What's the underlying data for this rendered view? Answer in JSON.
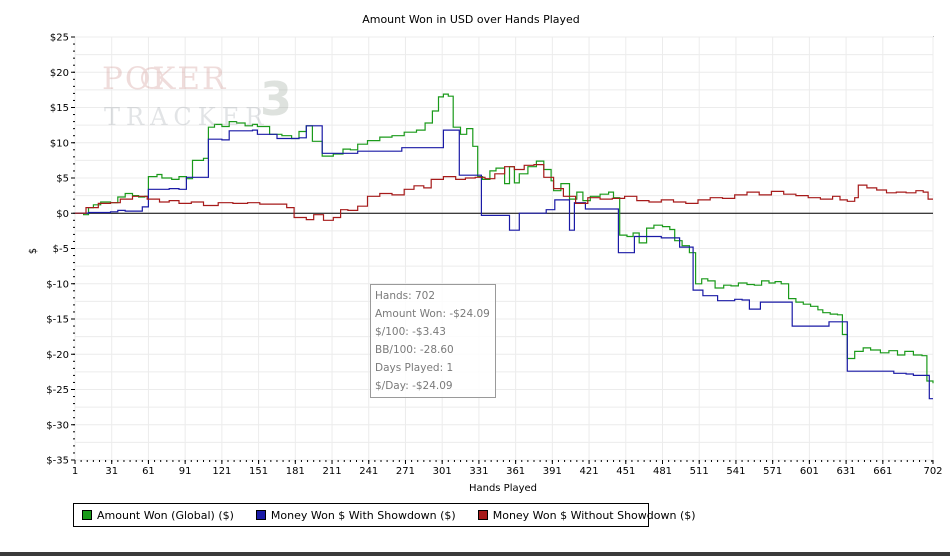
{
  "chart_data": {
    "type": "line",
    "title": "Amount Won in USD over Hands Played",
    "xlabel": "Hands Played",
    "ylabel": "$",
    "xlim": [
      1,
      702
    ],
    "ylim": [
      -35,
      25
    ],
    "x_ticks": [
      1,
      31,
      61,
      91,
      121,
      151,
      181,
      211,
      241,
      271,
      301,
      331,
      361,
      391,
      421,
      451,
      481,
      511,
      541,
      571,
      601,
      631,
      661,
      702
    ],
    "y_ticks": [
      {
        "v": 25,
        "label": "$25"
      },
      {
        "v": 20,
        "label": "$20"
      },
      {
        "v": 15,
        "label": "$15"
      },
      {
        "v": 10,
        "label": "$10"
      },
      {
        "v": 5,
        "label": "$5"
      },
      {
        "v": 0,
        "label": "$0"
      },
      {
        "v": -5,
        "label": "$-5"
      },
      {
        "v": -10,
        "label": "$-10"
      },
      {
        "v": -15,
        "label": "$-15"
      },
      {
        "v": -20,
        "label": "$-20"
      },
      {
        "v": -25,
        "label": "$-25"
      },
      {
        "v": -30,
        "label": "$-30"
      },
      {
        "v": -35,
        "label": "$-35"
      }
    ],
    "grid": true,
    "legend_position": "bottom",
    "series": [
      {
        "name": "Amount Won (Global) ($)",
        "color": "#1a9a1a",
        "points": [
          [
            1,
            0
          ],
          [
            8,
            -0.2
          ],
          [
            12,
            0.8
          ],
          [
            16,
            1.2
          ],
          [
            22,
            1.6
          ],
          [
            30,
            1.5
          ],
          [
            36,
            2.3
          ],
          [
            42,
            2.8
          ],
          [
            48,
            2.5
          ],
          [
            53,
            2.3
          ],
          [
            58,
            2.4
          ],
          [
            61,
            5.2
          ],
          [
            68,
            5.5
          ],
          [
            72,
            5.0
          ],
          [
            80,
            4.8
          ],
          [
            86,
            5.2
          ],
          [
            92,
            4.9
          ],
          [
            97,
            7.5
          ],
          [
            106,
            7.8
          ],
          [
            110,
            12.2
          ],
          [
            115,
            12.6
          ],
          [
            121,
            12.3
          ],
          [
            127,
            13.0
          ],
          [
            133,
            12.8
          ],
          [
            140,
            12.4
          ],
          [
            146,
            12.6
          ],
          [
            150,
            12.3
          ],
          [
            160,
            11.2
          ],
          [
            170,
            11.0
          ],
          [
            178,
            10.6
          ],
          [
            184,
            11.6
          ],
          [
            190,
            12.4
          ],
          [
            195,
            10.2
          ],
          [
            203,
            8.1
          ],
          [
            212,
            8.4
          ],
          [
            220,
            9.1
          ],
          [
            226,
            9.0
          ],
          [
            232,
            9.8
          ],
          [
            240,
            10.3
          ],
          [
            250,
            10.8
          ],
          [
            260,
            11.0
          ],
          [
            270,
            11.5
          ],
          [
            280,
            11.8
          ],
          [
            287,
            12.8
          ],
          [
            293,
            14.5
          ],
          [
            298,
            16.5
          ],
          [
            302,
            16.9
          ],
          [
            306,
            16.6
          ],
          [
            310,
            12.2
          ],
          [
            316,
            11.2
          ],
          [
            321,
            12.0
          ],
          [
            326,
            9.5
          ],
          [
            330,
            5.2
          ],
          [
            334,
            4.8
          ],
          [
            340,
            6.0
          ],
          [
            345,
            6.4
          ],
          [
            352,
            4.2
          ],
          [
            356,
            6.6
          ],
          [
            360,
            4.3
          ],
          [
            364,
            5.6
          ],
          [
            371,
            6.6
          ],
          [
            378,
            7.4
          ],
          [
            384,
            6.2
          ],
          [
            390,
            4.6
          ],
          [
            392,
            3.2
          ],
          [
            398,
            4.2
          ],
          [
            405,
            2.0
          ],
          [
            411,
            3.0
          ],
          [
            416,
            1.8
          ],
          [
            422,
            2.4
          ],
          [
            430,
            2.7
          ],
          [
            437,
            3.0
          ],
          [
            441,
            2.2
          ],
          [
            446,
            -3.1
          ],
          [
            452,
            -3.3
          ],
          [
            457,
            -2.8
          ],
          [
            462,
            -4.2
          ],
          [
            468,
            -2.1
          ],
          [
            474,
            -1.7
          ],
          [
            481,
            -1.9
          ],
          [
            487,
            -2.3
          ],
          [
            491,
            -3.9
          ],
          [
            497,
            -4.6
          ],
          [
            503,
            -5.6
          ],
          [
            508,
            -10.0
          ],
          [
            513,
            -9.3
          ],
          [
            518,
            -9.6
          ],
          [
            524,
            -10.6
          ],
          [
            531,
            -10.2
          ],
          [
            537,
            -10.3
          ],
          [
            543,
            -9.9
          ],
          [
            550,
            -10.1
          ],
          [
            556,
            -10.2
          ],
          [
            562,
            -9.6
          ],
          [
            568,
            -9.9
          ],
          [
            573,
            -9.7
          ],
          [
            578,
            -10.0
          ],
          [
            584,
            -12.1
          ],
          [
            590,
            -12.6
          ],
          [
            596,
            -12.9
          ],
          [
            602,
            -13.2
          ],
          [
            608,
            -13.7
          ],
          [
            612,
            -14.1
          ],
          [
            618,
            -14.3
          ],
          [
            624,
            -14.4
          ],
          [
            628,
            -17.2
          ],
          [
            632,
            -20.6
          ],
          [
            638,
            -19.6
          ],
          [
            645,
            -19.1
          ],
          [
            651,
            -19.4
          ],
          [
            659,
            -19.8
          ],
          [
            666,
            -19.5
          ],
          [
            673,
            -20.1
          ],
          [
            679,
            -19.6
          ],
          [
            686,
            -20.1
          ],
          [
            693,
            -20.2
          ],
          [
            697,
            -23.8
          ],
          [
            702,
            -24.1
          ]
        ]
      },
      {
        "name": "Money Won $ With Showdown ($)",
        "color": "#1a1aa6",
        "points": [
          [
            1,
            0
          ],
          [
            12,
            0.1
          ],
          [
            22,
            0.1
          ],
          [
            30,
            0.2
          ],
          [
            36,
            0.4
          ],
          [
            42,
            0.3
          ],
          [
            50,
            0.3
          ],
          [
            56,
            0.9
          ],
          [
            61,
            3.4
          ],
          [
            74,
            3.4
          ],
          [
            78,
            3.5
          ],
          [
            86,
            3.4
          ],
          [
            92,
            5.1
          ],
          [
            106,
            5.1
          ],
          [
            110,
            10.5
          ],
          [
            121,
            10.4
          ],
          [
            127,
            11.7
          ],
          [
            146,
            11.8
          ],
          [
            150,
            11.2
          ],
          [
            160,
            11.2
          ],
          [
            166,
            10.6
          ],
          [
            184,
            10.7
          ],
          [
            190,
            12.4
          ],
          [
            200,
            12.4
          ],
          [
            203,
            8.5
          ],
          [
            226,
            8.5
          ],
          [
            232,
            8.8
          ],
          [
            262,
            8.8
          ],
          [
            268,
            9.3
          ],
          [
            296,
            9.3
          ],
          [
            302,
            11.8
          ],
          [
            312,
            11.8
          ],
          [
            315,
            5.4
          ],
          [
            328,
            5.4
          ],
          [
            333,
            -0.3
          ],
          [
            352,
            -0.3
          ],
          [
            356,
            -2.4
          ],
          [
            362,
            -2.4
          ],
          [
            364,
            0
          ],
          [
            380,
            0
          ],
          [
            386,
            0.5
          ],
          [
            390,
            0.5
          ],
          [
            393,
            1.9
          ],
          [
            401,
            1.9
          ],
          [
            405,
            -2.4
          ],
          [
            409,
            1.5
          ],
          [
            414,
            1.5
          ],
          [
            418,
            0.6
          ],
          [
            440,
            0.6
          ],
          [
            445,
            -5.6
          ],
          [
            456,
            -5.6
          ],
          [
            458,
            -3.3
          ],
          [
            476,
            -3.3
          ],
          [
            480,
            -3.5
          ],
          [
            490,
            -3.5
          ],
          [
            495,
            -4.8
          ],
          [
            503,
            -4.8
          ],
          [
            506,
            -10.9
          ],
          [
            512,
            -10.9
          ],
          [
            514,
            -11.7
          ],
          [
            520,
            -11.7
          ],
          [
            526,
            -12.4
          ],
          [
            534,
            -12.4
          ],
          [
            540,
            -12.2
          ],
          [
            546,
            -12.3
          ],
          [
            552,
            -13.6
          ],
          [
            558,
            -13.6
          ],
          [
            561,
            -12.6
          ],
          [
            582,
            -12.6
          ],
          [
            587,
            -16.0
          ],
          [
            614,
            -16.0
          ],
          [
            617,
            -15.4
          ],
          [
            628,
            -15.4
          ],
          [
            632,
            -22.4
          ],
          [
            666,
            -22.4
          ],
          [
            670,
            -22.7
          ],
          [
            680,
            -22.8
          ],
          [
            686,
            -23.0
          ],
          [
            697,
            -23.0
          ],
          [
            699,
            -26.3
          ],
          [
            702,
            -26.3
          ]
        ]
      },
      {
        "name": "Money Won $ Without Showdown ($)",
        "color": "#a61a1a",
        "points": [
          [
            1,
            0
          ],
          [
            10,
            0.8
          ],
          [
            20,
            1.4
          ],
          [
            30,
            1.5
          ],
          [
            38,
            2.0
          ],
          [
            48,
            2.4
          ],
          [
            60,
            2.0
          ],
          [
            70,
            1.6
          ],
          [
            78,
            1.8
          ],
          [
            86,
            1.4
          ],
          [
            96,
            1.6
          ],
          [
            106,
            1.1
          ],
          [
            118,
            1.5
          ],
          [
            130,
            1.4
          ],
          [
            142,
            1.5
          ],
          [
            152,
            1.3
          ],
          [
            164,
            1.3
          ],
          [
            174,
            0.8
          ],
          [
            180,
            -0.6
          ],
          [
            190,
            -0.9
          ],
          [
            196,
            -0.2
          ],
          [
            204,
            -1.0
          ],
          [
            212,
            -0.6
          ],
          [
            218,
            0.5
          ],
          [
            224,
            0.4
          ],
          [
            232,
            1.0
          ],
          [
            240,
            2.4
          ],
          [
            250,
            2.8
          ],
          [
            260,
            2.6
          ],
          [
            270,
            3.4
          ],
          [
            278,
            3.9
          ],
          [
            286,
            3.6
          ],
          [
            292,
            4.8
          ],
          [
            302,
            5.2
          ],
          [
            312,
            4.8
          ],
          [
            320,
            5.0
          ],
          [
            328,
            5.1
          ],
          [
            336,
            4.9
          ],
          [
            344,
            5.6
          ],
          [
            352,
            6.6
          ],
          [
            360,
            6.2
          ],
          [
            368,
            6.8
          ],
          [
            376,
            6.9
          ],
          [
            384,
            5.1
          ],
          [
            392,
            3.5
          ],
          [
            400,
            2.4
          ],
          [
            410,
            1.4
          ],
          [
            420,
            2.2
          ],
          [
            430,
            2.0
          ],
          [
            440,
            2.1
          ],
          [
            450,
            2.4
          ],
          [
            460,
            1.8
          ],
          [
            470,
            1.6
          ],
          [
            480,
            1.9
          ],
          [
            490,
            1.6
          ],
          [
            500,
            1.4
          ],
          [
            510,
            1.9
          ],
          [
            520,
            2.2
          ],
          [
            530,
            2.1
          ],
          [
            540,
            2.6
          ],
          [
            550,
            3.0
          ],
          [
            560,
            2.6
          ],
          [
            570,
            3.1
          ],
          [
            580,
            2.7
          ],
          [
            590,
            2.5
          ],
          [
            600,
            2.2
          ],
          [
            610,
            2.0
          ],
          [
            620,
            2.4
          ],
          [
            626,
            1.9
          ],
          [
            632,
            1.7
          ],
          [
            638,
            2.2
          ],
          [
            641,
            4.0
          ],
          [
            648,
            3.6
          ],
          [
            656,
            3.3
          ],
          [
            664,
            2.9
          ],
          [
            672,
            3.0
          ],
          [
            680,
            2.9
          ],
          [
            688,
            3.2
          ],
          [
            694,
            3.0
          ],
          [
            698,
            2.0
          ],
          [
            702,
            2.0
          ]
        ]
      }
    ]
  },
  "watermark": {
    "line1": "POKER",
    "line2": "TRACKER",
    "mark": "3",
    "color": "#c9857f"
  },
  "info_box": {
    "hands": "Hands: 702",
    "amount_won": "Amount Won: -$24.09",
    "per_100": "$/100: -$3.43",
    "bb_100": "BB/100: -28.60",
    "days_played": "Days Played: 1",
    "per_day": "$/Day: -$24.09"
  },
  "legend": [
    {
      "label": "Amount Won (Global) ($)",
      "color": "#1a9a1a"
    },
    {
      "label": "Money Won $ With Showdown ($)",
      "color": "#1a1aa6"
    },
    {
      "label": "Money Won $ Without Showdown ($)",
      "color": "#a61a1a"
    }
  ]
}
